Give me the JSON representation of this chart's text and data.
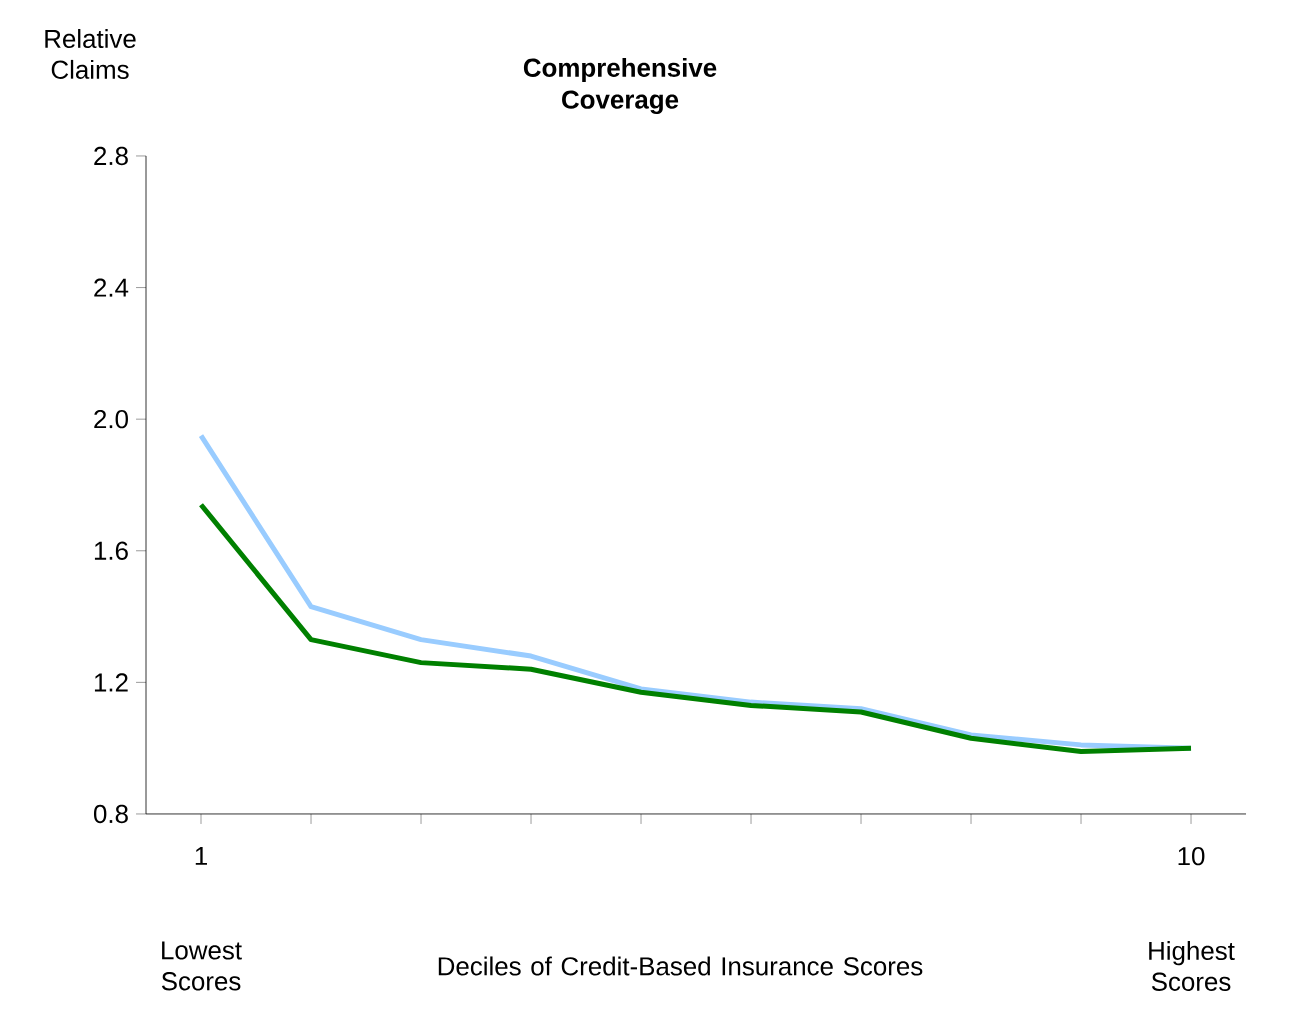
{
  "chart_data": {
    "type": "line",
    "title": "Comprehensive Coverage",
    "ylabel": "Relative Claims",
    "xlabel": "Deciles of Credit-Based Insurance Scores",
    "categories": [
      "1",
      null,
      null,
      null,
      null,
      null,
      null,
      null,
      null,
      "10"
    ],
    "annotations": [
      "Lowest Scores",
      "Highest Scores"
    ],
    "series": [
      {
        "color": "#99ccff",
        "values": [
          1.95,
          1.43,
          1.33,
          1.28,
          1.18,
          1.14,
          1.12,
          1.04,
          1.01,
          1.0
        ]
      },
      {
        "color": "#008000",
        "values": [
          1.74,
          1.33,
          1.26,
          1.24,
          1.17,
          1.13,
          1.11,
          1.03,
          0.99,
          1.0
        ]
      }
    ],
    "ylim": [
      0.8,
      2.8
    ],
    "yticks": [
      0.8,
      1.2,
      1.6,
      {
        "value": 2.0,
        "label": "2.0"
      },
      2.4,
      2.8
    ],
    "grid": false,
    "marker": "none",
    "line_style": "solid"
  }
}
